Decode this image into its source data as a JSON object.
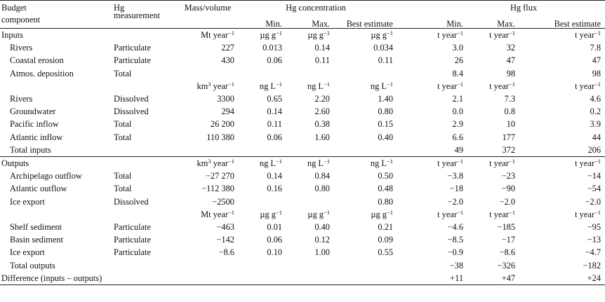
{
  "header": {
    "budget_component": [
      "Budget",
      "component"
    ],
    "hg_measurement": [
      "Hg",
      "measurement"
    ],
    "mass_volume": "Mass/volume",
    "hg_concentration": "Hg concentration",
    "hg_flux": "Hg flux",
    "conc_sub": [
      "Min.",
      "Max.",
      "Best estimate"
    ],
    "flux_sub": [
      "Min.",
      "Max.",
      "Best estimate"
    ]
  },
  "rows": [
    {
      "type": "section",
      "label": "Inputs",
      "mass": "Mt year",
      "mass_sup": "−1",
      "c": [
        "µg g",
        "µg g",
        "µg g"
      ],
      "c_sup": "−1",
      "f": [
        "t year",
        "t year",
        "t year"
      ],
      "f_sup": "−1"
    },
    {
      "type": "data",
      "label": "Rivers",
      "meas": "Particulate",
      "mass": "227",
      "c": [
        "0.013",
        "0.14",
        "0.034"
      ],
      "f": [
        "3.0",
        "32",
        "7.8"
      ]
    },
    {
      "type": "data",
      "label": "Coastal erosion",
      "meas": "Particulate",
      "mass": "430",
      "c": [
        "0.06",
        "0.11",
        "0.11"
      ],
      "f": [
        "26",
        "47",
        "47"
      ]
    },
    {
      "type": "data",
      "label": "Atmos. deposition",
      "meas": "Total",
      "mass": "",
      "c": [
        "",
        "",
        ""
      ],
      "f": [
        "8.4",
        "98",
        "98"
      ]
    },
    {
      "type": "units",
      "mass": "km",
      "mass_sup1": "3",
      "mass_rest": " year",
      "mass_sup": "−1",
      "c": [
        "ng L",
        "ng L",
        "ng L"
      ],
      "c_sup": "−1",
      "f": [
        "t year",
        "t year",
        "t year"
      ],
      "f_sup": "−1"
    },
    {
      "type": "data",
      "label": "Rivers",
      "meas": "Dissolved",
      "mass": "3300",
      "c": [
        "0.65",
        "2.20",
        "1.40"
      ],
      "f": [
        "2.1",
        "7.3",
        "4.6"
      ]
    },
    {
      "type": "data",
      "label": "Groundwater",
      "meas": "Dissolved",
      "mass": "294",
      "c": [
        "0.14",
        "2.60",
        "0.80"
      ],
      "f": [
        "0.0",
        "0.8",
        "0.2"
      ]
    },
    {
      "type": "data",
      "label": "Pacific inflow",
      "meas": "Total",
      "mass": "26 200",
      "c": [
        "0.11",
        "0.38",
        "0.15"
      ],
      "f": [
        "2.9",
        "10",
        "3.9"
      ]
    },
    {
      "type": "data",
      "label": "Atlantic inflow",
      "meas": "Total",
      "mass": "110 380",
      "c": [
        "0.06",
        "1.60",
        "0.40"
      ],
      "f": [
        "6.6",
        "177",
        "44"
      ]
    },
    {
      "type": "data",
      "label": "Total inputs",
      "meas": "",
      "mass": "",
      "c": [
        "",
        "",
        ""
      ],
      "f": [
        "49",
        "372",
        "206"
      ]
    },
    {
      "type": "section",
      "label": "Outputs",
      "sep": true,
      "mass": "km",
      "mass_sup1": "3",
      "mass_rest": " year",
      "mass_sup": "−1",
      "c": [
        "ng L",
        "ng L",
        "ng L"
      ],
      "c_sup": "−1",
      "f": [
        "t year",
        "t year",
        "t year"
      ],
      "f_sup": "−1"
    },
    {
      "type": "data",
      "label": "Archipelago outflow",
      "meas": "Total",
      "mass": "−27 270",
      "c": [
        "0.14",
        "0.84",
        "0.50"
      ],
      "f": [
        "−3.8",
        "−23",
        "−14"
      ]
    },
    {
      "type": "data",
      "label": "Atlantic outflow",
      "meas": "Total",
      "mass": "−112 380",
      "c": [
        "0.16",
        "0.80",
        "0.48"
      ],
      "f": [
        "−18",
        "−90",
        "−54"
      ]
    },
    {
      "type": "data",
      "label": "Ice export",
      "meas": "Dissolved",
      "mass": "−2500",
      "c": [
        "",
        "",
        "0.80"
      ],
      "f": [
        "−2.0",
        "−2.0",
        "−2.0"
      ]
    },
    {
      "type": "units",
      "mass": "Mt year",
      "mass_sup": "−1",
      "c": [
        "µg g",
        "µg g",
        "µg g"
      ],
      "c_sup": "−1",
      "f": [
        "t year",
        "t year",
        "t year"
      ],
      "f_sup": "−1"
    },
    {
      "type": "data",
      "label": "Shelf sediment",
      "meas": "Particulate",
      "mass": "−463",
      "c": [
        "0.01",
        "0.40",
        "0.21"
      ],
      "f": [
        "−4.6",
        "−185",
        "−95"
      ]
    },
    {
      "type": "data",
      "label": "Basin sediment",
      "meas": "Particulate",
      "mass": "−142",
      "c": [
        "0.06",
        "0.12",
        "0.09"
      ],
      "f": [
        "−8.5",
        "−17",
        "−13"
      ]
    },
    {
      "type": "data",
      "label": "Ice export",
      "meas": "Particulate",
      "mass": "−8.6",
      "c": [
        "0.10",
        "1.00",
        "0.55"
      ],
      "f": [
        "−0.9",
        "−8.6",
        "−4.7"
      ]
    },
    {
      "type": "data",
      "label": "Total outputs",
      "meas": "",
      "mass": "",
      "c": [
        "",
        "",
        ""
      ],
      "f": [
        "−38",
        "−326",
        "−182"
      ]
    },
    {
      "type": "diff",
      "label": "Difference (inputs – outputs)",
      "f": [
        "+11",
        "+47",
        "+24"
      ]
    }
  ]
}
